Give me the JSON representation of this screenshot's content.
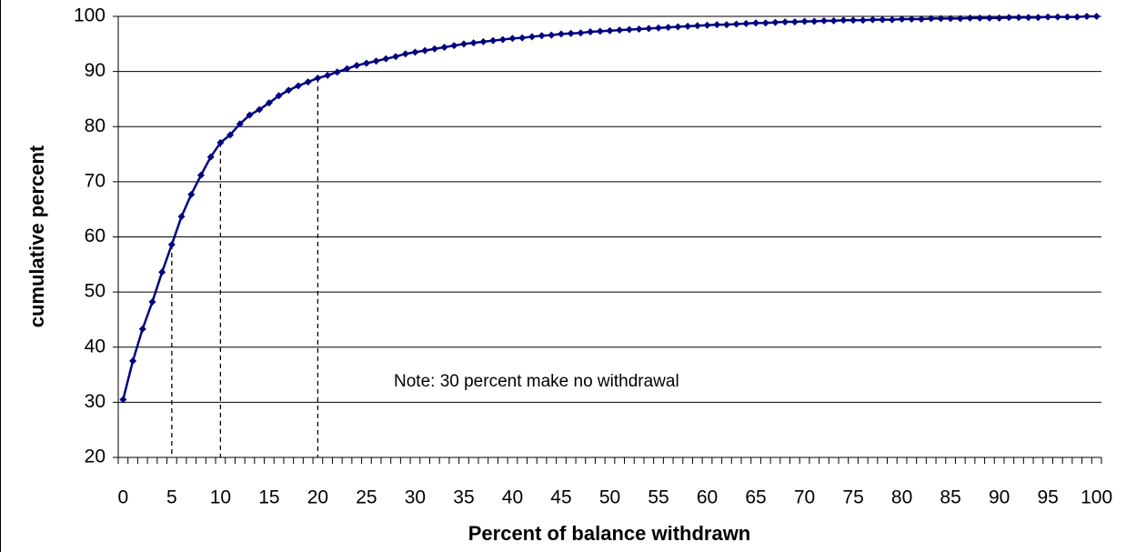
{
  "chart_data": {
    "type": "line",
    "xlabel": "Percent of balance withdrawn",
    "ylabel": "cumulative percent",
    "annotation": "Note:  30 percent make no withdrawal",
    "categories": [
      "0",
      null,
      null,
      null,
      null,
      "5",
      null,
      null,
      null,
      null,
      "10",
      null,
      null,
      null,
      null,
      "15",
      null,
      null,
      null,
      null,
      "20",
      null,
      null,
      null,
      null,
      "25",
      null,
      null,
      null,
      null,
      "30",
      null,
      null,
      null,
      null,
      "35",
      null,
      null,
      null,
      null,
      "40",
      null,
      null,
      null,
      null,
      "45",
      null,
      null,
      null,
      null,
      "50",
      null,
      null,
      null,
      null,
      "55",
      null,
      null,
      null,
      null,
      "60",
      null,
      null,
      null,
      null,
      "65",
      null,
      null,
      null,
      null,
      "70",
      null,
      null,
      null,
      null,
      "75",
      null,
      null,
      null,
      null,
      "80",
      null,
      null,
      null,
      null,
      "85",
      null,
      null,
      null,
      null,
      "90",
      null,
      null,
      null,
      null,
      "95",
      null,
      null,
      null,
      null,
      "100"
    ],
    "values": [
      30.5,
      37.5,
      43.3,
      48.2,
      53.6,
      58.6,
      63.7,
      67.7,
      71.2,
      74.5,
      77.1,
      78.5,
      80.5,
      82.1,
      83.1,
      84.3,
      85.6,
      86.6,
      87.4,
      88.1,
      88.8,
      89.3,
      89.9,
      90.5,
      91.1,
      91.5,
      91.9,
      92.3,
      92.7,
      93.2,
      93.5,
      93.8,
      94.1,
      94.4,
      94.7,
      95.0,
      95.2,
      95.4,
      95.6,
      95.8,
      96.0,
      96.1,
      96.3,
      96.5,
      96.6,
      96.8,
      96.9,
      97.0,
      97.2,
      97.3,
      97.4,
      97.5,
      97.6,
      97.7,
      97.8,
      97.9,
      98.0,
      98.1,
      98.2,
      98.3,
      98.4,
      98.5,
      98.5,
      98.6,
      98.7,
      98.8,
      98.8,
      98.9,
      99.0,
      99.0,
      99.1,
      99.1,
      99.2,
      99.2,
      99.3,
      99.3,
      99.3,
      99.4,
      99.4,
      99.4,
      99.5,
      99.5,
      99.5,
      99.6,
      99.6,
      99.6,
      99.6,
      99.7,
      99.7,
      99.7,
      99.7,
      99.8,
      99.8,
      99.8,
      99.8,
      99.9,
      99.9,
      99.9,
      99.9,
      100,
      100
    ],
    "color": "#000080",
    "drop_lines": [
      5,
      10,
      20
    ],
    "ylim": [
      20,
      100
    ],
    "yticks": [
      20,
      30,
      40,
      50,
      60,
      70,
      80,
      90,
      100
    ],
    "grid": true
  }
}
